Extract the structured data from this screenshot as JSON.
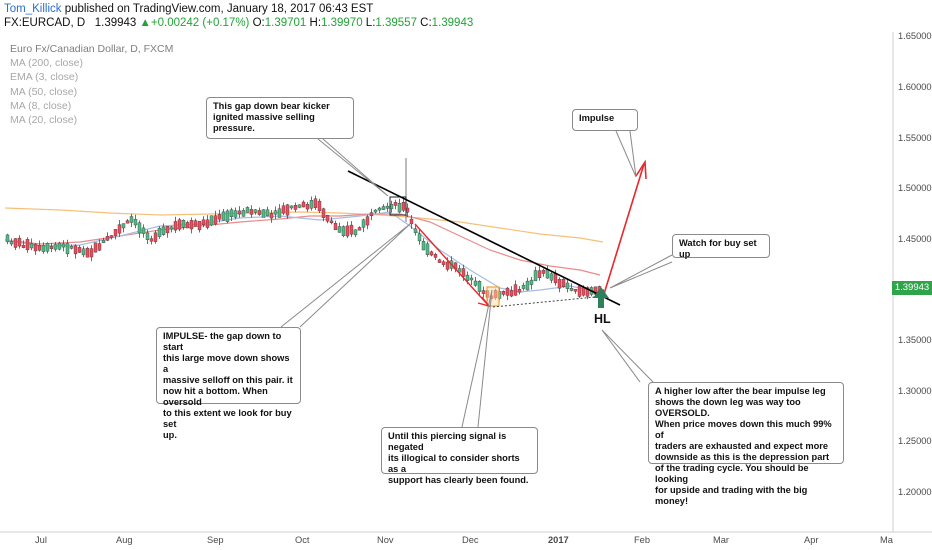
{
  "header": {
    "user": "Tom_Killick",
    "published_text": "published on TradingView.com, January 18, 2017 06:43 EST",
    "symbol": "FX:EURCAD, D",
    "last_price": "1.39943",
    "change_arrow": "▲",
    "change_text": "+0.00242 (+0.17%)",
    "open_label": "O:",
    "open_value": "1.39701",
    "high_label": "H:",
    "high_value": "1.39970",
    "low_label": "L:",
    "low_value": "1.39557",
    "close_label": "C:",
    "close_value": "1.39943"
  },
  "legend": {
    "title": "Euro Fx/Canadian Dollar, D, FXCM",
    "indicators": [
      "MA (200, close)",
      "EMA (3, close)",
      "MA (50, close)",
      "MA (8, close)",
      "MA (20, close)"
    ]
  },
  "annotations": {
    "gap_down": "This gap down bear kicker\nignited massive selling\npressure.",
    "impulse": "Impulse",
    "watch": "Watch for buy set up",
    "impulse_detail": "IMPULSE- the gap down to start\nthis large move down shows a\nmassive selloff on this pair. it\nnow hit a bottom. When oversold\nto this extent we look for buy set\nup.",
    "piercing": "Until this piercing signal is negated\nits illogical to consider shorts as a\nsupport has clearly been found.",
    "higher_low": "A higher low after the bear impulse leg\nshows the down leg was way too OVERSOLD.\nWhen price moves down this much 99% of\ntraders are exhausted and expect more\ndownside as this is the depression part\nof the trading cycle. You should be looking\nfor upside and trading with the big money!",
    "hl": "HL"
  },
  "price_badge": "1.39943",
  "colors": {
    "up_candle": "#53b987",
    "down_candle": "#eb4d5c",
    "ma200": "#f5c17a",
    "ma50": "#e98b8b",
    "ma20": "#a7bde3",
    "trendline": "#000000",
    "arrow": "#e8282b",
    "hl_arrow": "#2f7f5a",
    "price_badge": "#2fa44a"
  },
  "chart_data": {
    "type": "candlestick",
    "symbol": "EURCAD",
    "timeframe": "D",
    "y_ticks": [
      "1.65000",
      "1.60000",
      "1.55000",
      "1.50000",
      "1.45000",
      "1.40000",
      "1.35000",
      "1.30000",
      "1.25000",
      "1.20000"
    ],
    "x_ticks": [
      "Jul",
      "Aug",
      "Sep",
      "Oct",
      "Nov",
      "Dec",
      "2017",
      "Feb",
      "Mar",
      "Apr",
      "Ma"
    ],
    "ylim": [
      1.17,
      1.65
    ],
    "approx_close_path": [
      {
        "month": "Jul",
        "price": 1.44
      },
      {
        "month": "Aug",
        "price": 1.445
      },
      {
        "month": "Sep",
        "price": 1.46
      },
      {
        "month": "Oct",
        "price": 1.47
      },
      {
        "month": "Nov",
        "price": 1.485
      },
      {
        "month": "Dec",
        "price": 1.39
      },
      {
        "month": "2017",
        "price": 1.4
      }
    ],
    "grid": false
  }
}
